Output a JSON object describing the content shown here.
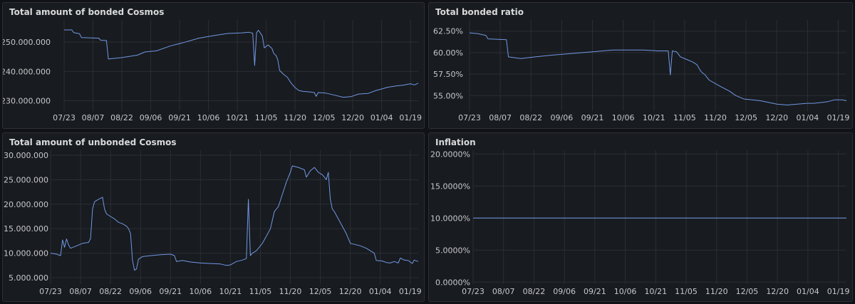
{
  "colors": {
    "series": "#7198e5",
    "background": "#111217",
    "panel": "#181b1f",
    "grid": "#2b2e34",
    "text": "#c7c8cc",
    "title": "#d8d9da"
  },
  "chart_data": [
    {
      "type": "line",
      "title": "Total amount of bonded Cosmos",
      "x_tick_labels": [
        "07/23",
        "08/07",
        "08/22",
        "09/06",
        "09/21",
        "10/06",
        "10/21",
        "11/05",
        "11/20",
        "12/05",
        "12/20",
        "01/04",
        "01/19"
      ],
      "y_tick_labels": [
        "250.000.000",
        "240.000.000",
        "230.000.000"
      ],
      "y_ticks": [
        250000000,
        240000000,
        230000000
      ],
      "ylim": [
        226500000,
        257500000
      ],
      "x_range_days": [
        0,
        184
      ],
      "points": [
        [
          0,
          254.1
        ],
        [
          4,
          254.1
        ],
        [
          5,
          253.2
        ],
        [
          8,
          252.8
        ],
        [
          9,
          251.5
        ],
        [
          18,
          251.3
        ],
        [
          19,
          250.6
        ],
        [
          22,
          250.5
        ],
        [
          23,
          244.2
        ],
        [
          30,
          244.7
        ],
        [
          38,
          245.5
        ],
        [
          42,
          246.6
        ],
        [
          48,
          247.0
        ],
        [
          55,
          248.6
        ],
        [
          62,
          249.8
        ],
        [
          70,
          251.3
        ],
        [
          78,
          252.2
        ],
        [
          85,
          252.9
        ],
        [
          92,
          253.1
        ],
        [
          96,
          253.3
        ],
        [
          98,
          253.0
        ],
        [
          99,
          242.0
        ],
        [
          100,
          253.2
        ],
        [
          101,
          254.0
        ],
        [
          103,
          252.0
        ],
        [
          104,
          248.0
        ],
        [
          106,
          249.0
        ],
        [
          108,
          247.8
        ],
        [
          109,
          246.0
        ],
        [
          110,
          245.5
        ],
        [
          111,
          244.0
        ],
        [
          112,
          240.3
        ],
        [
          114,
          239.0
        ],
        [
          116,
          238.0
        ],
        [
          118,
          236.0
        ],
        [
          120,
          234.5
        ],
        [
          122,
          233.5
        ],
        [
          124,
          233.2
        ],
        [
          128,
          233.0
        ],
        [
          130,
          232.8
        ],
        [
          131,
          231.5
        ],
        [
          132,
          232.8
        ],
        [
          136,
          232.6
        ],
        [
          140,
          232.0
        ],
        [
          145,
          231.2
        ],
        [
          149,
          231.4
        ],
        [
          153,
          232.3
        ],
        [
          158,
          232.5
        ],
        [
          162,
          233.5
        ],
        [
          165,
          234.0
        ],
        [
          168,
          234.6
        ],
        [
          172,
          235.0
        ],
        [
          176,
          235.3
        ],
        [
          180,
          235.8
        ],
        [
          182,
          235.4
        ],
        [
          184,
          236.0
        ]
      ],
      "point_scale": 1000000
    },
    {
      "type": "line",
      "title": "Total bonded ratio",
      "x_tick_labels": [
        "07/23",
        "08/07",
        "08/22",
        "09/06",
        "09/21",
        "10/06",
        "10/21",
        "11/05",
        "11/20",
        "12/05",
        "12/20",
        "01/04",
        "01/19"
      ],
      "y_tick_labels": [
        "62.50%",
        "60.00%",
        "57.50%",
        "55.00%"
      ],
      "y_ticks": [
        62.5,
        60.0,
        57.5,
        55.0
      ],
      "ylim": [
        53.2,
        63.8
      ],
      "x_range_days": [
        0,
        184
      ],
      "points": [
        [
          0,
          62.3
        ],
        [
          4,
          62.2
        ],
        [
          8,
          62.0
        ],
        [
          9,
          61.6
        ],
        [
          18,
          61.5
        ],
        [
          19,
          59.5
        ],
        [
          25,
          59.3
        ],
        [
          32,
          59.5
        ],
        [
          40,
          59.7
        ],
        [
          50,
          59.9
        ],
        [
          60,
          60.1
        ],
        [
          70,
          60.3
        ],
        [
          78,
          60.3
        ],
        [
          85,
          60.3
        ],
        [
          92,
          60.2
        ],
        [
          97,
          60.2
        ],
        [
          98,
          57.4
        ],
        [
          99,
          60.2
        ],
        [
          101,
          60.1
        ],
        [
          103,
          59.5
        ],
        [
          106,
          59.2
        ],
        [
          109,
          58.9
        ],
        [
          111,
          58.6
        ],
        [
          113,
          57.8
        ],
        [
          115,
          57.4
        ],
        [
          117,
          56.8
        ],
        [
          120,
          56.4
        ],
        [
          123,
          56.0
        ],
        [
          127,
          55.5
        ],
        [
          130,
          55.0
        ],
        [
          134,
          54.6
        ],
        [
          138,
          54.5
        ],
        [
          142,
          54.4
        ],
        [
          146,
          54.2
        ],
        [
          150,
          54.0
        ],
        [
          155,
          53.9
        ],
        [
          160,
          54.0
        ],
        [
          165,
          54.1
        ],
        [
          168,
          54.1
        ],
        [
          172,
          54.2
        ],
        [
          175,
          54.3
        ],
        [
          178,
          54.5
        ],
        [
          182,
          54.5
        ],
        [
          184,
          54.4
        ]
      ]
    },
    {
      "type": "line",
      "title": "Total amount of unbonded Cosmos",
      "x_tick_labels": [
        "07/23",
        "08/07",
        "08/22",
        "09/06",
        "09/21",
        "10/06",
        "10/21",
        "11/05",
        "11/20",
        "12/05",
        "12/20",
        "01/04",
        "01/19"
      ],
      "y_tick_labels": [
        "30.000.000",
        "25.000.000",
        "20.000.000",
        "15.000.000",
        "10.000.000",
        "5.000.000"
      ],
      "y_ticks": [
        30000000,
        25000000,
        20000000,
        15000000,
        10000000,
        5000000
      ],
      "ylim": [
        3700000,
        31000000
      ],
      "x_range_days": [
        0,
        184
      ],
      "points": [
        [
          0,
          10.0
        ],
        [
          3,
          9.8
        ],
        [
          5,
          9.5
        ],
        [
          6,
          12.7
        ],
        [
          7,
          11.2
        ],
        [
          8,
          12.9
        ],
        [
          9,
          11.7
        ],
        [
          10,
          11.0
        ],
        [
          13,
          11.5
        ],
        [
          16,
          12.0
        ],
        [
          19,
          12.2
        ],
        [
          20,
          13.0
        ],
        [
          21,
          19.0
        ],
        [
          22,
          20.5
        ],
        [
          24,
          21.0
        ],
        [
          26,
          21.4
        ],
        [
          27,
          19.0
        ],
        [
          28,
          18.0
        ],
        [
          30,
          17.5
        ],
        [
          32,
          17.0
        ],
        [
          34,
          16.3
        ],
        [
          36,
          16.0
        ],
        [
          38,
          15.5
        ],
        [
          39,
          15.0
        ],
        [
          40,
          14.0
        ],
        [
          41,
          8.5
        ],
        [
          42,
          6.5
        ],
        [
          43,
          6.8
        ],
        [
          44,
          8.8
        ],
        [
          46,
          9.3
        ],
        [
          50,
          9.5
        ],
        [
          55,
          9.7
        ],
        [
          60,
          9.8
        ],
        [
          62,
          9.5
        ],
        [
          63,
          8.3
        ],
        [
          66,
          8.5
        ],
        [
          70,
          8.2
        ],
        [
          75,
          8.0
        ],
        [
          80,
          7.9
        ],
        [
          85,
          7.8
        ],
        [
          88,
          7.5
        ],
        [
          90,
          7.6
        ],
        [
          93,
          8.3
        ],
        [
          96,
          8.6
        ],
        [
          98,
          8.9
        ],
        [
          99,
          21.0
        ],
        [
          100,
          9.5
        ],
        [
          101,
          10.0
        ],
        [
          103,
          10.5
        ],
        [
          106,
          12.0
        ],
        [
          108,
          13.5
        ],
        [
          110,
          15.0
        ],
        [
          112,
          18.5
        ],
        [
          114,
          19.5
        ],
        [
          116,
          22.0
        ],
        [
          118,
          24.5
        ],
        [
          120,
          26.5
        ],
        [
          121,
          27.8
        ],
        [
          124,
          27.5
        ],
        [
          127,
          27.0
        ],
        [
          128,
          25.5
        ],
        [
          130,
          26.8
        ],
        [
          132,
          27.5
        ],
        [
          134,
          26.5
        ],
        [
          136,
          26.0
        ],
        [
          138,
          25.0
        ],
        [
          139,
          26.5
        ],
        [
          140,
          21.0
        ],
        [
          141,
          19.0
        ],
        [
          142,
          18.5
        ],
        [
          144,
          17.0
        ],
        [
          146,
          15.5
        ],
        [
          148,
          14.0
        ],
        [
          150,
          12.0
        ],
        [
          152,
          11.8
        ],
        [
          155,
          11.5
        ],
        [
          158,
          11.0
        ],
        [
          160,
          10.5
        ],
        [
          162,
          10.0
        ],
        [
          163,
          8.5
        ],
        [
          166,
          8.4
        ],
        [
          168,
          8.1
        ],
        [
          170,
          8.0
        ],
        [
          172,
          8.3
        ],
        [
          174,
          8.0
        ],
        [
          175,
          9.0
        ],
        [
          177,
          8.6
        ],
        [
          179,
          8.5
        ],
        [
          181,
          7.9
        ],
        [
          182,
          8.6
        ],
        [
          184,
          8.3
        ]
      ],
      "point_scale": 1000000
    },
    {
      "type": "line",
      "title": "Inflation",
      "x_tick_labels": [
        "07/23",
        "08/07",
        "08/22",
        "09/06",
        "09/21",
        "10/06",
        "10/21",
        "11/05",
        "11/20",
        "12/05",
        "12/20",
        "01/04",
        "01/19"
      ],
      "y_tick_labels": [
        "20.0000%",
        "15.0000%",
        "10.0000%",
        "5.0000%",
        "0.0000%"
      ],
      "y_ticks": [
        20,
        15,
        10,
        5,
        0
      ],
      "ylim": [
        -0.3,
        20.6
      ],
      "x_range_days": [
        0,
        184
      ],
      "points": [
        [
          0,
          10.0
        ],
        [
          184,
          10.0
        ]
      ]
    }
  ]
}
